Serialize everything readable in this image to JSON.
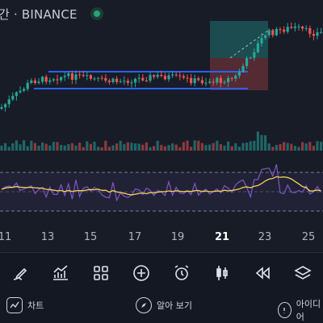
{
  "header": {
    "title": "간 · BINANCE"
  },
  "x_axis": {
    "labels": [
      "11",
      "13",
      "15",
      "17",
      "19",
      "21",
      "23",
      "25"
    ],
    "highlight": "21"
  },
  "toolbar": {
    "tools": [
      "pen-icon",
      "indicators-icon",
      "layouts-icon",
      "add-icon",
      "alert-icon",
      "candles-icon",
      "replay-icon",
      "layers-icon"
    ]
  },
  "bottom_nav": {
    "chart_label": "차트",
    "explore_label": "알아 보기",
    "ideas_label": "아이디어"
  },
  "colors": {
    "up": "#26a69a",
    "down": "#ef5350",
    "channel": "#2962ff",
    "rsi": "#7e57c2",
    "rsi_ma": "#f3d35a",
    "background": "#181c27"
  }
}
